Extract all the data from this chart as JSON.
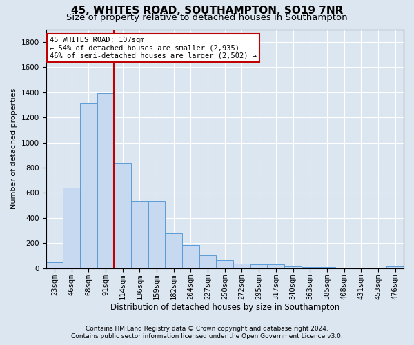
{
  "title1": "45, WHITES ROAD, SOUTHAMPTON, SO19 7NR",
  "title2": "Size of property relative to detached houses in Southampton",
  "xlabel": "Distribution of detached houses by size in Southampton",
  "ylabel": "Number of detached properties",
  "categories": [
    "23sqm",
    "46sqm",
    "68sqm",
    "91sqm",
    "114sqm",
    "136sqm",
    "159sqm",
    "182sqm",
    "204sqm",
    "227sqm",
    "250sqm",
    "272sqm",
    "295sqm",
    "317sqm",
    "340sqm",
    "363sqm",
    "385sqm",
    "408sqm",
    "431sqm",
    "453sqm",
    "476sqm"
  ],
  "values": [
    50,
    640,
    1310,
    1390,
    840,
    530,
    530,
    280,
    185,
    105,
    65,
    35,
    30,
    30,
    15,
    10,
    8,
    5,
    5,
    5,
    15
  ],
  "bar_color": "#c6d9f1",
  "bar_edge_color": "#5b9bd5",
  "vline_x": 3.5,
  "vline_color": "#c00000",
  "annotation_line1": "45 WHITES ROAD: 107sqm",
  "annotation_line2": "← 54% of detached houses are smaller (2,935)",
  "annotation_line3": "46% of semi-detached houses are larger (2,502) →",
  "annotation_box_color": "#ffffff",
  "annotation_box_edge": "#c00000",
  "ylim": [
    0,
    1900
  ],
  "yticks": [
    0,
    200,
    400,
    600,
    800,
    1000,
    1200,
    1400,
    1600,
    1800
  ],
  "background_color": "#dce6f1",
  "footer1": "Contains HM Land Registry data © Crown copyright and database right 2024.",
  "footer2": "Contains public sector information licensed under the Open Government Licence v3.0.",
  "title1_fontsize": 11,
  "title2_fontsize": 9.5,
  "xlabel_fontsize": 8.5,
  "ylabel_fontsize": 8,
  "tick_fontsize": 7.5,
  "annotation_fontsize": 7.5,
  "footer_fontsize": 6.5
}
